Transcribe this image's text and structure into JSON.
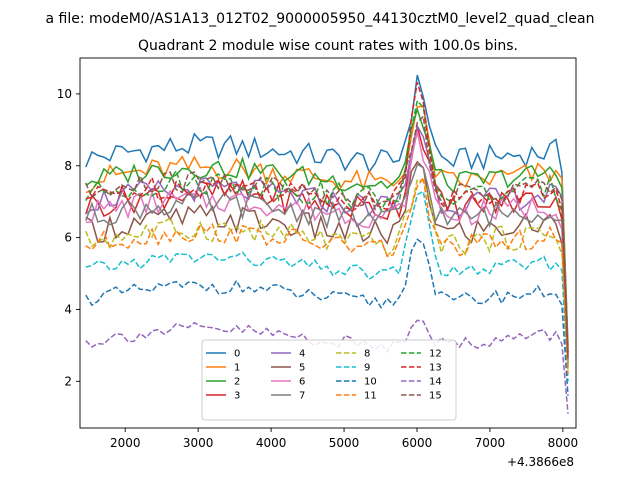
{
  "chart_data": {
    "type": "line",
    "figure_title": "a file: modeM0/AS1A13_012T02_9000005950_44130cztM0_level2_quad_clean",
    "title": "Quadrant 2 module wise count rates with 100.0s bins.",
    "xlabel": "",
    "ylabel": "",
    "x_offset_label": "+4.3866e8",
    "xlim": [
      1380,
      8180
    ],
    "ylim": [
      0.7,
      11.0
    ],
    "xticks": [
      2000,
      3000,
      4000,
      5000,
      6000,
      7000,
      8000
    ],
    "yticks": [
      2,
      4,
      6,
      8,
      10
    ],
    "grid": false,
    "legend": {
      "position": "lower-center",
      "columns": 4
    },
    "series": [
      {
        "name": "0",
        "color": "#1f77b4",
        "style": "solid",
        "base": 8.2,
        "wave": 0.35,
        "peak": 10.4,
        "end": 3.0
      },
      {
        "name": "1",
        "color": "#ff7f0e",
        "style": "solid",
        "base": 7.6,
        "wave": 0.35,
        "peak": 9.7,
        "end": 2.9
      },
      {
        "name": "2",
        "color": "#2ca02c",
        "style": "solid",
        "base": 7.6,
        "wave": 0.3,
        "peak": 9.6,
        "end": 2.8
      },
      {
        "name": "3",
        "color": "#d62728",
        "style": "solid",
        "base": 6.9,
        "wave": 0.4,
        "peak": 9.2,
        "end": 2.7
      },
      {
        "name": "4",
        "color": "#9467bd",
        "style": "solid",
        "base": 7.0,
        "wave": 0.35,
        "peak": 9.3,
        "end": 2.6
      },
      {
        "name": "5",
        "color": "#8c564b",
        "style": "solid",
        "base": 6.2,
        "wave": 0.4,
        "peak": 8.3,
        "end": 2.4
      },
      {
        "name": "6",
        "color": "#e377c2",
        "style": "solid",
        "base": 6.7,
        "wave": 0.35,
        "peak": 8.8,
        "end": 2.5
      },
      {
        "name": "7",
        "color": "#7f7f7f",
        "style": "solid",
        "base": 6.6,
        "wave": 0.35,
        "peak": 8.2,
        "end": 2.5
      },
      {
        "name": "8",
        "color": "#bcbd22",
        "style": "dashed",
        "base": 5.9,
        "wave": 0.35,
        "peak": 7.9,
        "end": 2.3
      },
      {
        "name": "9",
        "color": "#17becf",
        "style": "dashed",
        "base": 5.1,
        "wave": 0.2,
        "peak": 7.5,
        "end": 2.0
      },
      {
        "name": "10",
        "color": "#1f77b4",
        "style": "dashed",
        "base": 4.3,
        "wave": 0.2,
        "peak": 6.3,
        "end": 1.6
      },
      {
        "name": "11",
        "color": "#ff7f0e",
        "style": "dashed",
        "base": 5.8,
        "wave": 0.3,
        "peak": 7.7,
        "end": 2.2
      },
      {
        "name": "12",
        "color": "#2ca02c",
        "style": "dashed",
        "base": 7.2,
        "wave": 0.35,
        "peak": 9.7,
        "end": 2.8
      },
      {
        "name": "13",
        "color": "#d62728",
        "style": "dashed",
        "base": 7.1,
        "wave": 0.35,
        "peak": 10.5,
        "end": 2.7
      },
      {
        "name": "14",
        "color": "#9467bd",
        "style": "dashed",
        "base": 3.1,
        "wave": 0.2,
        "peak": 4.0,
        "end": 1.1
      },
      {
        "name": "15",
        "color": "#8c564b",
        "style": "dashed",
        "base": 7.2,
        "wave": 0.35,
        "peak": 9.5,
        "end": 2.6
      }
    ]
  }
}
